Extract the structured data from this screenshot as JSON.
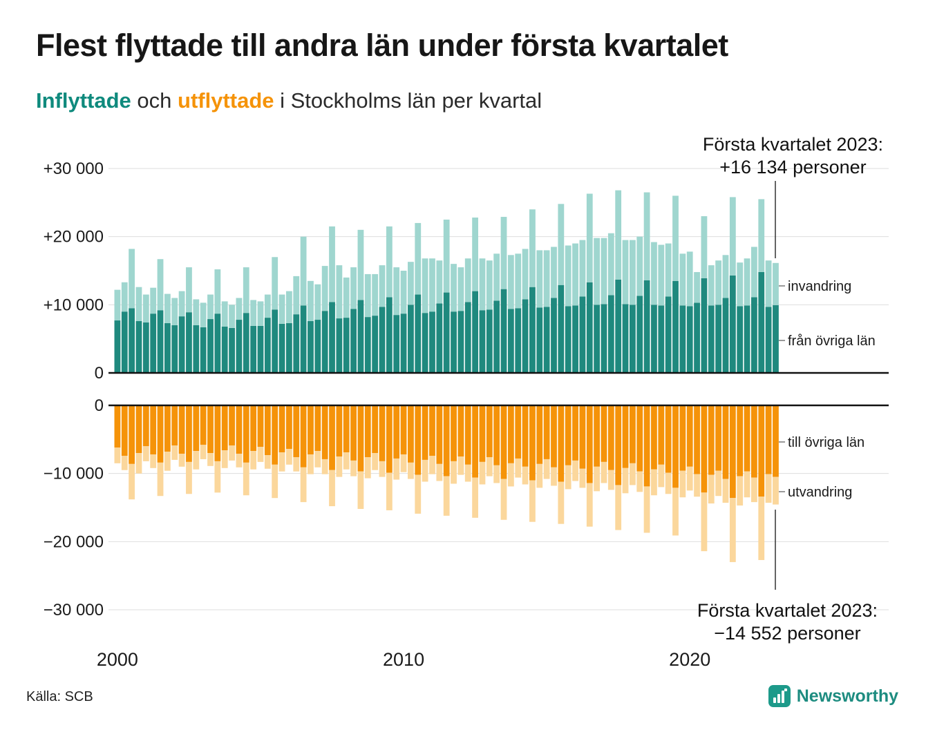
{
  "title": "Flest flyttade till andra län under första kvartalet",
  "subtitle": {
    "part1": "Inflyttade",
    "part2": " och ",
    "part3": "utflyttade",
    "part4": " i Stockholms län per kvartal"
  },
  "annotations": {
    "top": {
      "line1": "Första kvartalet 2023:",
      "line2": "+16 134 personer"
    },
    "bottom": {
      "line1": "Första kvartalet 2023:",
      "line2": "−14 552 personer"
    }
  },
  "series_labels": {
    "invandring": "invandring",
    "fran_ovriga_lan": "från övriga län",
    "till_ovriga_lan": "till övriga län",
    "utvandring": "utvandring"
  },
  "source": "Källa: SCB",
  "brand": "Newsworthy",
  "colors": {
    "teal_dark": "#1f897e",
    "teal_light": "#9fd6cf",
    "orange_dark": "#f59309",
    "orange_light": "#fbd79c",
    "gridline": "#dedede",
    "zero_line": "#111111",
    "text": "#1a1a1a"
  },
  "axes": {
    "y_top_ticks": [
      {
        "label": "+30 000",
        "v": 30000
      },
      {
        "label": "+20 000",
        "v": 20000
      },
      {
        "label": "+10 000",
        "v": 10000
      },
      {
        "label": "0",
        "v": 0
      }
    ],
    "y_bottom_ticks": [
      {
        "label": "0",
        "v": 0
      },
      {
        "label": "−10 000",
        "v": -10000
      },
      {
        "label": "−20 000",
        "v": -20000
      },
      {
        "label": "−30 000",
        "v": -30000
      }
    ],
    "x_ticks": [
      {
        "label": "2000",
        "index": 0
      },
      {
        "label": "2010",
        "index": 40
      },
      {
        "label": "2020",
        "index": 80
      }
    ]
  },
  "chart_data": {
    "type": "bar",
    "stacked": true,
    "frequency": "quarterly",
    "x_start": "2000 Q1",
    "x_end": "2023 Q1",
    "ylim_top": [
      0,
      30000
    ],
    "ylim_bottom": [
      -30000,
      0
    ],
    "highlight": {
      "quarter": "2023 Q1",
      "inflow_total": 16134,
      "outflow_total": -14552
    },
    "series": [
      {
        "name": "från övriga län",
        "direction": "up",
        "color": "#1f897e",
        "values": [
          7700,
          9000,
          9500,
          7600,
          7400,
          8700,
          9200,
          7300,
          7000,
          8300,
          8900,
          7000,
          6700,
          7900,
          8700,
          6800,
          6600,
          7800,
          8800,
          6900,
          6900,
          8100,
          9300,
          7200,
          7300,
          8600,
          9900,
          7600,
          7800,
          9100,
          10400,
          8000,
          8100,
          9400,
          10700,
          8200,
          8400,
          9700,
          11100,
          8500,
          8700,
          10000,
          11500,
          8800,
          9000,
          10200,
          11800,
          9000,
          9100,
          10400,
          12000,
          9200,
          9300,
          10600,
          12300,
          9400,
          9500,
          10800,
          12600,
          9600,
          9700,
          11000,
          12900,
          9800,
          9900,
          11200,
          13300,
          10000,
          10100,
          11400,
          13700,
          10100,
          10000,
          11300,
          13600,
          10000,
          9900,
          11200,
          13500,
          9900,
          9800,
          10300,
          13900,
          9900,
          10000,
          11000,
          14300,
          9800,
          9900,
          11100,
          14800,
          9700,
          9950
        ]
      },
      {
        "name": "invandring",
        "direction": "up",
        "color": "#9fd6cf",
        "values": [
          4500,
          4300,
          8700,
          5000,
          4100,
          3800,
          7500,
          4300,
          4000,
          3700,
          6600,
          3800,
          3600,
          3600,
          6500,
          3700,
          3400,
          3200,
          6700,
          3800,
          3600,
          3400,
          7700,
          4300,
          4700,
          5600,
          10100,
          5900,
          5200,
          6600,
          11100,
          7800,
          5900,
          6100,
          10300,
          6300,
          6100,
          6100,
          10400,
          7000,
          6300,
          6300,
          10500,
          8000,
          7800,
          6300,
          10700,
          7000,
          6400,
          6400,
          10800,
          7600,
          7200,
          6900,
          10600,
          7900,
          8000,
          7400,
          11400,
          8400,
          8300,
          7500,
          11900,
          8900,
          9100,
          8300,
          13000,
          9800,
          9700,
          9100,
          13100,
          9400,
          9500,
          8700,
          12900,
          9200,
          8900,
          7800,
          12500,
          7600,
          8000,
          4500,
          9100,
          5900,
          6500,
          6300,
          11500,
          6400,
          6900,
          7400,
          10700,
          6800,
          6184
        ]
      },
      {
        "name": "till övriga län",
        "direction": "down",
        "color": "#f59309",
        "values": [
          -6200,
          -7400,
          -8600,
          -7000,
          -6000,
          -7200,
          -8400,
          -6800,
          -5900,
          -7100,
          -8300,
          -6700,
          -5800,
          -7000,
          -8200,
          -6600,
          -5900,
          -7100,
          -8400,
          -6700,
          -6100,
          -7300,
          -8700,
          -6900,
          -6400,
          -7600,
          -9100,
          -7200,
          -6700,
          -7900,
          -9500,
          -7500,
          -6900,
          -8100,
          -9700,
          -7600,
          -7000,
          -8200,
          -9900,
          -7800,
          -7200,
          -8400,
          -10200,
          -8000,
          -7400,
          -8600,
          -10400,
          -8200,
          -7500,
          -8700,
          -10600,
          -8300,
          -7600,
          -8800,
          -10800,
          -8500,
          -7800,
          -9000,
          -11000,
          -8600,
          -7900,
          -9100,
          -11200,
          -8800,
          -8100,
          -9300,
          -11400,
          -9000,
          -8300,
          -9500,
          -11700,
          -9200,
          -8500,
          -9700,
          -11900,
          -9400,
          -8700,
          -9900,
          -12100,
          -9600,
          -9000,
          -10100,
          -12800,
          -10200,
          -9600,
          -10800,
          -13600,
          -10400,
          -9700,
          -10600,
          -13400,
          -10100,
          -10500
        ]
      },
      {
        "name": "utvandring",
        "direction": "down",
        "color": "#fbd79c",
        "values": [
          -2300,
          -2100,
          -5200,
          -3000,
          -2200,
          -2000,
          -4900,
          -2800,
          -2100,
          -1900,
          -4700,
          -2700,
          -2100,
          -1900,
          -4600,
          -2600,
          -2200,
          -2000,
          -4800,
          -2700,
          -2200,
          -2000,
          -4900,
          -2800,
          -2300,
          -2100,
          -5100,
          -2900,
          -2400,
          -2200,
          -5300,
          -3000,
          -2500,
          -2300,
          -5500,
          -3100,
          -2500,
          -2300,
          -5500,
          -3100,
          -2600,
          -2400,
          -5700,
          -3200,
          -2700,
          -2500,
          -5800,
          -3300,
          -2700,
          -2500,
          -5900,
          -3300,
          -2800,
          -2600,
          -6000,
          -3400,
          -2800,
          -2600,
          -6100,
          -3500,
          -2900,
          -2700,
          -6200,
          -3500,
          -3000,
          -2800,
          -6400,
          -3600,
          -3100,
          -2900,
          -6600,
          -3700,
          -3200,
          -3000,
          -6800,
          -3800,
          -3300,
          -3100,
          -7000,
          -3900,
          -3500,
          -3300,
          -8600,
          -4200,
          -3700,
          -3500,
          -9400,
          -4300,
          -3800,
          -3600,
          -9300,
          -4200,
          -4052
        ]
      }
    ]
  }
}
